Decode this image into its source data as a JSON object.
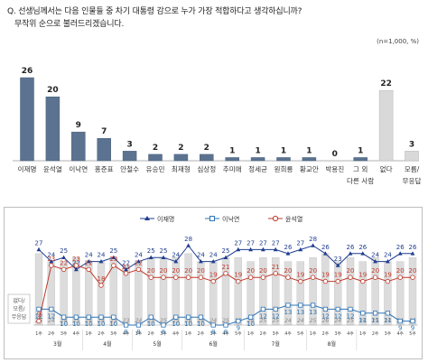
{
  "question": {
    "line1": "Q. 선생님께서는 다음 인물들 중 차기 대통령 감으로 누가 가장 적합하다고 생각하십니까?",
    "line2": "무작위 순으로 불러드리겠습니다.",
    "note": "(n=1,000, %)"
  },
  "chart_data": [
    {
      "type": "bar",
      "categories": [
        "이재명",
        "윤석열",
        "이낙연",
        "홍준표",
        "안철수",
        "유승민",
        "최재형",
        "심상정",
        "추미애",
        "정세균",
        "원희룡",
        "황교안",
        "박용진",
        "그 외 다른 사람",
        "없다",
        "모름/ 무응답"
      ],
      "values": [
        26,
        20,
        9,
        7,
        3,
        2,
        2,
        2,
        1,
        1,
        1,
        1,
        0,
        1,
        22,
        3
      ],
      "colors": {
        "named": "#5b7391",
        "other": "#d9d9d9"
      }
    },
    {
      "type": "line",
      "x": [
        "1주",
        "2주",
        "3주",
        "4주",
        "1주",
        "2주",
        "3주",
        "4주",
        "1주",
        "2주",
        "3주",
        "4주",
        "1주",
        "2주",
        "3주",
        "4주",
        "5주",
        "1주",
        "2주",
        "3주",
        "4주",
        "5주",
        "1주",
        "2주",
        "3주",
        "4주",
        "1주",
        "2주",
        "3주",
        "4주",
        "5주"
      ],
      "month_labels": [
        "3월",
        "4월",
        "5월",
        "6월",
        "7월",
        "8월"
      ],
      "series": [
        {
          "name": "이재명",
          "color": "#1f3d8f",
          "values": [
            27,
            24,
            25,
            22,
            24,
            24,
            25,
            22,
            24,
            25,
            25,
            24,
            28,
            24,
            24,
            25,
            27,
            27,
            27,
            27,
            26,
            27,
            28,
            26,
            23,
            26,
            26,
            24,
            24,
            26,
            26
          ]
        },
        {
          "name": "이낙연",
          "color": "#2e75b6",
          "values": [
            12,
            12,
            10,
            10,
            10,
            10,
            10,
            8,
            8,
            10,
            8,
            10,
            10,
            10,
            8,
            8,
            9,
            10,
            12,
            12,
            13,
            13,
            13,
            12,
            12,
            12,
            11,
            11,
            11,
            9,
            9
          ]
        },
        {
          "name": "윤석열",
          "color": "#c0392b",
          "values": [
            9,
            23,
            22,
            23,
            22,
            18,
            23,
            21,
            22,
            20,
            20,
            20,
            20,
            20,
            19,
            21,
            19,
            20,
            20,
            21,
            20,
            19,
            20,
            19,
            19,
            20,
            19,
            20,
            19,
            20,
            20
          ]
        }
      ],
      "bars_label": "없다/ 모름/ 무응답",
      "bars": [
        26,
        24,
        24,
        25,
        24,
        24,
        25,
        23,
        24,
        25,
        25,
        25,
        26,
        24,
        24,
        25,
        25,
        24,
        25,
        25,
        24,
        24,
        25,
        26,
        24,
        25,
        24,
        25,
        24,
        24,
        25
      ]
    }
  ]
}
